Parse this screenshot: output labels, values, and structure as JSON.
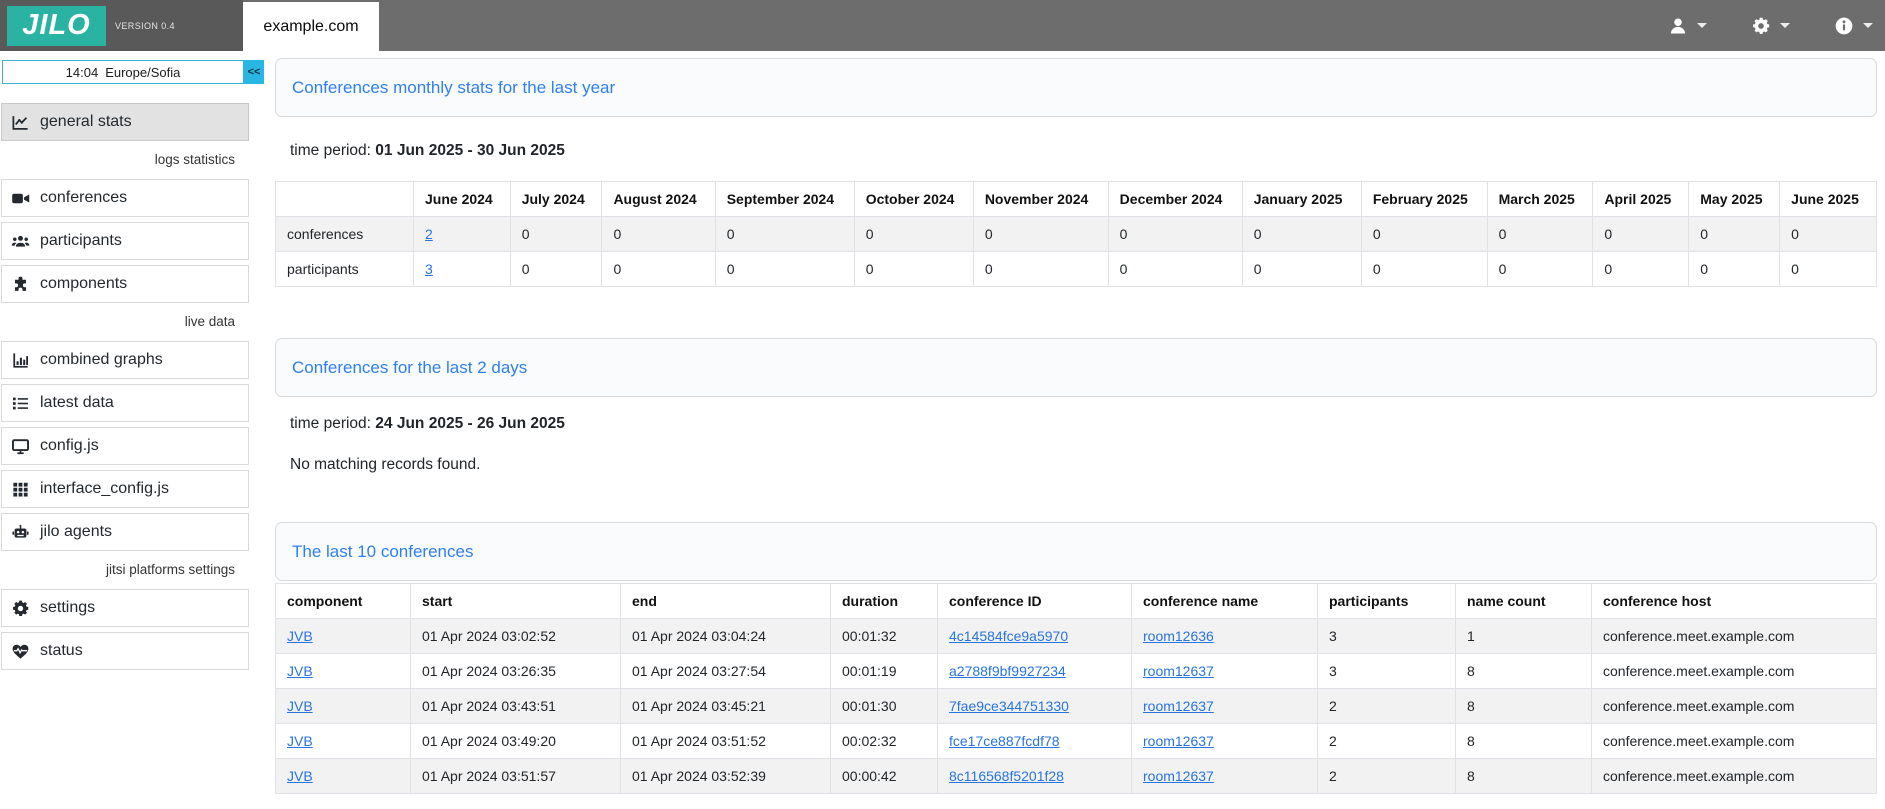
{
  "colors": {
    "brand_teal": "#2ab3a3",
    "topbar_gray": "#6d6d6d",
    "topbar_left_gray": "#595959",
    "accent_cyan": "#29b6e4",
    "card_title_blue": "#2e7ff0",
    "link_blue": "#2874e0",
    "striped_row_bg": "#f2f2f2"
  },
  "header": {
    "logo_text": "JILO",
    "version": "VERSION 0.4",
    "tab_label": "example.com",
    "menus": [
      {
        "icon": "user-icon"
      },
      {
        "icon": "gear-icon"
      },
      {
        "icon": "info-icon"
      }
    ]
  },
  "sidebar": {
    "clock": {
      "time": "14:04",
      "timezone": "Europe/Sofia",
      "collapse_label": "<<"
    },
    "sections": [
      {
        "label": "",
        "items": [
          {
            "icon": "chart-line-icon",
            "label": "general stats",
            "active": true
          }
        ]
      },
      {
        "label": "logs statistics",
        "items": [
          {
            "icon": "video-camera-icon",
            "label": "conferences"
          },
          {
            "icon": "users-icon",
            "label": "participants"
          },
          {
            "icon": "puzzle-icon",
            "label": "components"
          }
        ]
      },
      {
        "label": "live data",
        "items": [
          {
            "icon": "bar-chart-icon",
            "label": "combined graphs"
          },
          {
            "icon": "list-icon",
            "label": "latest data"
          },
          {
            "icon": "monitor-icon",
            "label": "config.js"
          },
          {
            "icon": "grid-icon",
            "label": "interface_config.js"
          },
          {
            "icon": "robot-icon",
            "label": "jilo agents"
          }
        ]
      },
      {
        "label": "jitsi platforms settings",
        "items": [
          {
            "icon": "gear-icon",
            "label": "settings"
          },
          {
            "icon": "heart-pulse-icon",
            "label": "status"
          }
        ]
      }
    ]
  },
  "main": {
    "monthly": {
      "title": "Conferences monthly stats for the last year",
      "time_period_label": "time period:",
      "time_period": "01 Jun 2025 - 30 Jun 2025",
      "columns": [
        "",
        "June 2024",
        "July 2024",
        "August 2024",
        "September 2024",
        "October 2024",
        "November 2024",
        "December 2024",
        "January 2025",
        "February 2025",
        "March 2025",
        "April 2025",
        "May 2025",
        "June 2025"
      ],
      "rows": [
        {
          "label": "conferences",
          "values": [
            "2",
            "0",
            "0",
            "0",
            "0",
            "0",
            "0",
            "0",
            "0",
            "0",
            "0",
            "0",
            "0"
          ],
          "link_indexes": [
            0
          ],
          "striped": true
        },
        {
          "label": "participants",
          "values": [
            "3",
            "0",
            "0",
            "0",
            "0",
            "0",
            "0",
            "0",
            "0",
            "0",
            "0",
            "0",
            "0"
          ],
          "link_indexes": [
            0
          ],
          "striped": false
        }
      ]
    },
    "last2days": {
      "title": "Conferences for the last 2 days",
      "time_period_label": "time period:",
      "time_period": "24 Jun 2025 - 26 Jun 2025",
      "empty_message": "No matching records found."
    },
    "last10": {
      "title": "The last 10 conferences",
      "columns": [
        "component",
        "start",
        "end",
        "duration",
        "conference ID",
        "conference name",
        "participants",
        "name count",
        "conference host"
      ],
      "link_columns": [
        0,
        4,
        5
      ],
      "rows": [
        [
          "JVB",
          "01 Apr 2024 03:02:52",
          "01 Apr 2024 03:04:24",
          "00:01:32",
          "4c14584fce9a5970",
          "room12636",
          "3",
          "1",
          "conference.meet.example.com"
        ],
        [
          "JVB",
          "01 Apr 2024 03:26:35",
          "01 Apr 2024 03:27:54",
          "00:01:19",
          "a2788f9bf9927234",
          "room12637",
          "3",
          "8",
          "conference.meet.example.com"
        ],
        [
          "JVB",
          "01 Apr 2024 03:43:51",
          "01 Apr 2024 03:45:21",
          "00:01:30",
          "7fae9ce344751330",
          "room12637",
          "2",
          "8",
          "conference.meet.example.com"
        ],
        [
          "JVB",
          "01 Apr 2024 03:49:20",
          "01 Apr 2024 03:51:52",
          "00:02:32",
          "fce17ce887fcdf78",
          "room12637",
          "2",
          "8",
          "conference.meet.example.com"
        ],
        [
          "JVB",
          "01 Apr 2024 03:51:57",
          "01 Apr 2024 03:52:39",
          "00:00:42",
          "8c116568f5201f28",
          "room12637",
          "2",
          "8",
          "conference.meet.example.com"
        ]
      ]
    }
  }
}
